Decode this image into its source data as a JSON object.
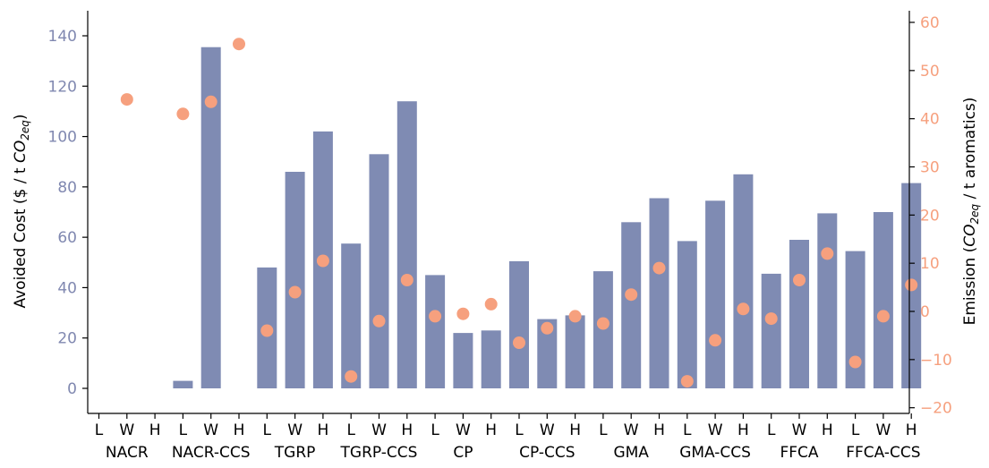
{
  "chart_data": {
    "type": "bar",
    "groups": [
      "NACR",
      "NACR-CCS",
      "TGRP",
      "TGRP-CCS",
      "CP",
      "CP-CCS",
      "GMA",
      "GMA-CCS",
      "FFCA",
      "FFCA-CCS"
    ],
    "subcategories": [
      "L",
      "W",
      "H"
    ],
    "series": [
      {
        "axis": "left",
        "mark": "bar",
        "color": "#7f8bb3",
        "values": [
          [
            null,
            null,
            null
          ],
          [
            3,
            135.5,
            null
          ],
          [
            48,
            86,
            102
          ],
          [
            57.5,
            93,
            114
          ],
          [
            45,
            22,
            23
          ],
          [
            50.5,
            27.5,
            29
          ],
          [
            46.5,
            66,
            75.5
          ],
          [
            58.5,
            74.5,
            85
          ],
          [
            45.5,
            59,
            69.5
          ],
          [
            54.5,
            70,
            81.5
          ]
        ]
      },
      {
        "axis": "right",
        "mark": "scatter",
        "color": "#f6a07e",
        "values": [
          [
            null,
            44,
            null
          ],
          [
            41,
            43.5,
            55.5
          ],
          [
            -4,
            4,
            10.5
          ],
          [
            -13.5,
            -2,
            6.5
          ],
          [
            -1,
            -0.5,
            1.5
          ],
          [
            -6.5,
            -3.5,
            -1
          ],
          [
            -2.5,
            3.5,
            9
          ],
          [
            -14.5,
            -6,
            0.5
          ],
          [
            -1.5,
            6.5,
            12
          ],
          [
            -10.5,
            -1,
            5.5
          ]
        ]
      }
    ],
    "y_left": {
      "label": "Avoided Cost ($ / t CO₂eq)",
      "label_parts": [
        "Avoided Cost ($ / t ",
        "CO",
        "2eq",
        ")"
      ],
      "lim": [
        -10,
        150
      ],
      "ticks": [
        "0",
        "20",
        "40",
        "60",
        "80",
        "100",
        "120",
        "140"
      ],
      "color": "#8088b0"
    },
    "y_right": {
      "label": "Emission (CO₂eq / t aromatics)",
      "label_parts": [
        "Emission (",
        "CO",
        "2eq",
        " / t aromatics)"
      ],
      "lim": [
        -22,
        62
      ],
      "ticks": [
        "60",
        "50",
        "40",
        "30",
        "20",
        "10",
        "0",
        "−10",
        "−20"
      ],
      "color": "#f6a07e"
    },
    "grid": false,
    "legend": "none"
  }
}
